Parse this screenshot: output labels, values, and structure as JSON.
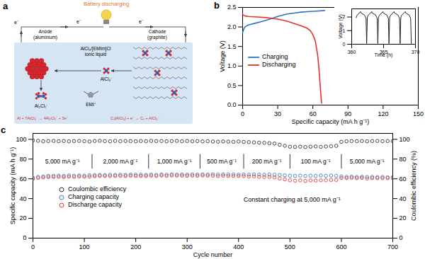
{
  "diagram": {
    "label": "a",
    "caption": "Battery discharging",
    "electron_labels": [
      "e⁻",
      "e⁻",
      "e⁻"
    ],
    "anode": [
      "Anode",
      "(aluminium)"
    ],
    "cathode": [
      "Cathode",
      "(graphite)"
    ],
    "electrolyte": [
      "AlCl₃/[EMIm]Cl",
      "ionic liquid"
    ],
    "species": [
      "AlCl₄⁻",
      "Al₂Cl₇⁻",
      "EMI⁺"
    ],
    "reactions": [
      "Al + 7AlCl₄⁻ → 4Al₂Cl₇⁻ + 3e⁻",
      "Cₙ[AlCl₄] + e⁻ → Cₙ + AlCl₄⁻"
    ]
  },
  "chart_data": [
    {
      "type": "line",
      "title": "b",
      "x_label": "Specific capacity (mA h g⁻¹)",
      "y_label": "Voltage (V)",
      "xlim": [
        0,
        150
      ],
      "xticks": [
        0,
        30,
        60,
        90,
        120,
        150
      ],
      "ylim": [
        0,
        2.5
      ],
      "yticks": [
        {
          "value": 0,
          "label": "0.0"
        },
        0.5,
        {
          "value": 1,
          "label": "1.0"
        },
        1.5,
        {
          "value": 2,
          "label": "2.0"
        },
        2.5
      ],
      "legend": "left",
      "series": [
        {
          "name": "Charging",
          "color": "#2f6fc0",
          "x": [
            0,
            1,
            2,
            4,
            6,
            10,
            15,
            20,
            25,
            30,
            35,
            40,
            45,
            50,
            55,
            60,
            65,
            70
          ],
          "values": [
            1.85,
            1.95,
            2.0,
            2.04,
            2.06,
            2.09,
            2.13,
            2.17,
            2.22,
            2.27,
            2.31,
            2.34,
            2.36,
            2.38,
            2.39,
            2.4,
            2.41,
            2.42
          ]
        },
        {
          "name": "Discharging",
          "color": "#e8312b",
          "x": [
            0,
            2,
            5,
            10,
            15,
            20,
            25,
            30,
            35,
            40,
            45,
            50,
            55,
            58,
            60,
            62,
            64,
            65,
            66,
            67,
            67.5
          ],
          "values": [
            2.32,
            2.28,
            2.27,
            2.26,
            2.25,
            2.24,
            2.22,
            2.2,
            2.17,
            2.13,
            2.08,
            2.03,
            1.97,
            1.9,
            1.8,
            1.65,
            1.3,
            1.0,
            0.6,
            0.2,
            0.05
          ]
        }
      ]
    },
    {
      "type": "line",
      "x_label": "Time (h)",
      "y_label": "Voltage (V)",
      "xlim": [
        360,
        370
      ],
      "xticks": [
        360,
        365,
        370
      ],
      "ylim": [
        0,
        2.6
      ],
      "yticks": [
        0,
        1,
        2
      ],
      "color": "#222222",
      "x": [
        360.7,
        360.8,
        361.4,
        361.45,
        362.0,
        362.25,
        362.35,
        362.45,
        362.55,
        363.15,
        363.2,
        363.75,
        364.0,
        364.1,
        364.2,
        364.3,
        364.9,
        364.95,
        365.5,
        365.75,
        365.85,
        365.95,
        366.05,
        366.65,
        366.7,
        367.25,
        367.5,
        367.6,
        367.7,
        367.8,
        368.4,
        368.45,
        369.0,
        369.25,
        369.35
      ],
      "values": [
        1.95,
        2.1,
        2.4,
        2.3,
        2.15,
        1.9,
        0.05,
        1.95,
        2.1,
        2.4,
        2.3,
        2.15,
        1.9,
        0.05,
        1.95,
        2.1,
        2.4,
        2.3,
        2.15,
        1.9,
        0.05,
        1.95,
        2.1,
        2.4,
        2.3,
        2.15,
        1.9,
        0.05,
        1.95,
        2.1,
        2.4,
        2.3,
        2.15,
        1.9,
        0.05
      ]
    },
    {
      "type": "scatter",
      "title": "c",
      "x_label": "Cycle number",
      "y_label": "Specific capacity (mA h g⁻¹)",
      "y2_label": "Coulombic efficiency (%)",
      "xlim": [
        0,
        700
      ],
      "xticks": [
        0,
        100,
        200,
        300,
        400,
        500,
        600,
        700
      ],
      "ylim": [
        0,
        106
      ],
      "yticks": [
        0,
        20,
        40,
        60,
        80,
        100
      ],
      "y2lim": [
        0,
        106
      ],
      "y2ticks": [
        0,
        20,
        40,
        60,
        80,
        100
      ],
      "legend": "bottom-left",
      "annotations": [
        "Constant charging at 5,000 mA g⁻¹"
      ],
      "segments": [
        {
          "label": "5,000 mA g⁻¹",
          "start": 0,
          "end": 115
        },
        {
          "label": "2,000 mA g⁻¹",
          "start": 115,
          "end": 225
        },
        {
          "label": "1,000 mA g⁻¹",
          "start": 225,
          "end": 325
        },
        {
          "label": "500 mA g⁻¹",
          "start": 325,
          "end": 410
        },
        {
          "label": "200 mA g⁻¹",
          "start": 410,
          "end": 500
        },
        {
          "label": "100 mA g⁻¹",
          "start": 500,
          "end": 600
        },
        {
          "label": "5,000 mA g⁻¹",
          "start": 600,
          "end": 700
        }
      ],
      "x": [
        0,
        10,
        20,
        30,
        40,
        50,
        60,
        70,
        80,
        90,
        100,
        110,
        120,
        130,
        140,
        150,
        160,
        170,
        180,
        190,
        200,
        210,
        220,
        230,
        240,
        250,
        260,
        270,
        280,
        290,
        300,
        310,
        320,
        330,
        340,
        350,
        360,
        370,
        380,
        390,
        400,
        410,
        420,
        430,
        440,
        450,
        460,
        470,
        480,
        490,
        500,
        510,
        520,
        530,
        540,
        550,
        560,
        570,
        580,
        590,
        600,
        610,
        620,
        630,
        640,
        650,
        660,
        670,
        680,
        690,
        700
      ],
      "series": [
        {
          "name": "Coulombic efficiency",
          "color": "#333333",
          "marker": "circle",
          "axis": "y2",
          "values": [
            99,
            98.5,
            98,
            98.2,
            98.4,
            98.1,
            98.3,
            98,
            98.2,
            98.4,
            98.1,
            97.8,
            98.3,
            98.5,
            98.2,
            98,
            98.4,
            98.1,
            98.3,
            98.2,
            98,
            98.3,
            98.1,
            98.4,
            98.2,
            98.3,
            98,
            98.2,
            98.4,
            98.1,
            98.3,
            98,
            98.2,
            97.9,
            98.1,
            97.8,
            97.6,
            97.9,
            97.7,
            97.5,
            97.8,
            97.4,
            97.2,
            96.9,
            96.6,
            96.4,
            96.1,
            95.8,
            94.5,
            93.5,
            92.5,
            92.3,
            92.6,
            92.2,
            92.5,
            92.8,
            92.4,
            92.7,
            93,
            93.4,
            97.5,
            98,
            98.2,
            98.1,
            98.3,
            98,
            98.2,
            98.4,
            98.1,
            98.3,
            98.2
          ]
        },
        {
          "name": "Charging capacity",
          "color": "#3d7fc4",
          "marker": "circle",
          "values": [
            61,
            62,
            62.5,
            63,
            63,
            63.2,
            63,
            63.4,
            63.2,
            63.5,
            63.3,
            63.6,
            63.8,
            64,
            63.9,
            64.1,
            64,
            64.2,
            64,
            64.3,
            64.1,
            64.2,
            64,
            64.3,
            64.1,
            64.4,
            64.2,
            64.5,
            64.3,
            64.4,
            64.2,
            64.5,
            64.3,
            64.6,
            64.4,
            64.5,
            64.3,
            64.6,
            64.4,
            64.5,
            64.3,
            64.4,
            64.2,
            64.5,
            64.3,
            64.1,
            64.4,
            64.2,
            63.9,
            63.6,
            63.2,
            63,
            63.3,
            62.9,
            63.2,
            63,
            63.4,
            63.1,
            63.3,
            63,
            62.5,
            62,
            62.2,
            61.9,
            62.1,
            61.8,
            62,
            61.7,
            61.9,
            61.6,
            61.8
          ]
        },
        {
          "name": "Discharge capacity",
          "color": "#e0403a",
          "marker": "circle",
          "values": [
            60,
            61,
            61.3,
            61.8,
            61.9,
            62,
            61.8,
            62.2,
            62,
            62.3,
            62.1,
            62.2,
            62.6,
            62.9,
            62.7,
            62.8,
            62.9,
            63,
            62.8,
            63.1,
            62.9,
            63,
            62.8,
            63.2,
            62.9,
            63.3,
            63,
            63.3,
            63.2,
            63.2,
            63.1,
            63.2,
            63.1,
            63.3,
            63.2,
            63.1,
            62.8,
            63.2,
            62.9,
            62.9,
            62.9,
            62.7,
            62.4,
            62.5,
            62.1,
            61.8,
            61.9,
            61.5,
            60.4,
            59.5,
            58.5,
            58.1,
            58.5,
            57.9,
            58.4,
            58.3,
            58.5,
            58.5,
            58.9,
            58.9,
            60.9,
            60.8,
            61.1,
            60.7,
            61,
            60.4,
            60.8,
            60.7,
            60.7,
            60.6,
            60.7
          ]
        }
      ]
    }
  ]
}
